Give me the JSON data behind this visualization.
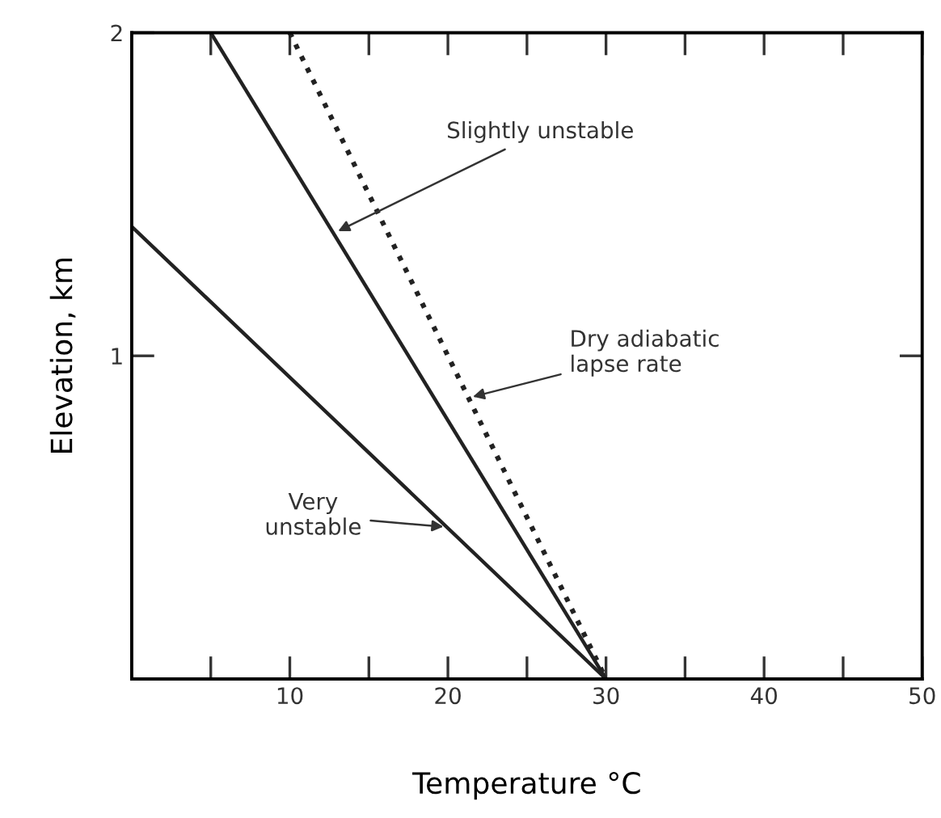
{
  "chart_data": {
    "type": "line",
    "xlabel": "Temperature °C",
    "ylabel": "Elevation, km",
    "xlim": [
      0,
      50
    ],
    "ylim": [
      0,
      2
    ],
    "xticks": [
      {
        "value": 5,
        "label": null
      },
      10,
      {
        "value": 15,
        "label": null
      },
      20,
      {
        "value": 25,
        "label": null
      },
      30,
      {
        "value": 35,
        "label": null
      },
      40,
      {
        "value": 45,
        "label": null
      },
      50
    ],
    "yticks": [
      1,
      2
    ],
    "grid": false,
    "legend": false,
    "marker": "none",
    "series": [
      {
        "color": "#222222",
        "x": [
          0,
          30
        ],
        "values": [
          1.4,
          0
        ],
        "line_style": "solid"
      },
      {
        "color": "#222222",
        "x": [
          5,
          30
        ],
        "values": [
          2,
          0
        ],
        "line_style": "solid"
      },
      {
        "color": "#222222",
        "x": [
          10,
          30
        ],
        "values": [
          2,
          0
        ],
        "line_style": "dotted"
      }
    ],
    "annotations": [
      {
        "text": "Slightly unstable",
        "x": 12.8,
        "y": 1.38
      },
      {
        "text": "Dry adiabatic\nlapse rate",
        "x": 21.3,
        "y": 0.87
      },
      {
        "text": "Very\nunstable",
        "x": 20,
        "y": 0.47
      }
    ]
  }
}
